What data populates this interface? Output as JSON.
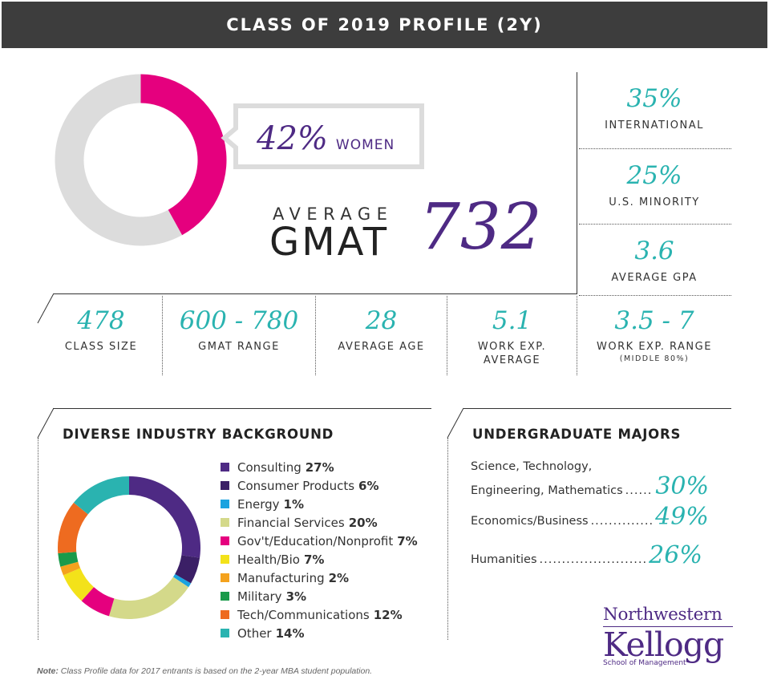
{
  "header": {
    "title": "CLASS OF 2019 PROFILE (2Y)"
  },
  "women": {
    "value": "42%",
    "label": "WOMEN",
    "fraction": 0.42,
    "colors": {
      "main": "#e5007e",
      "rest": "#dcdcdc"
    }
  },
  "gmat": {
    "prefix": "AVERAGE",
    "label": "GMAT",
    "value": "732"
  },
  "side_stats": [
    {
      "value": "35%",
      "label": "INTERNATIONAL"
    },
    {
      "value": "25%",
      "label": "U.S. MINORITY"
    },
    {
      "value": "3.6",
      "label": "AVERAGE GPA"
    }
  ],
  "row_stats": [
    {
      "value": "478",
      "label": "CLASS SIZE",
      "sub": ""
    },
    {
      "value": "600 - 780",
      "label": "GMAT RANGE",
      "sub": ""
    },
    {
      "value": "28",
      "label": "AVERAGE AGE",
      "sub": ""
    },
    {
      "value": "5.1",
      "label": "WORK EXP.",
      "label2": "AVERAGE",
      "sub": ""
    },
    {
      "value": "3.5 - 7",
      "label": "WORK EXP. RANGE",
      "sub": "(MIDDLE 80%)"
    }
  ],
  "industry": {
    "title": "DIVERSE INDUSTRY BACKGROUND"
  },
  "majors": {
    "title": "UNDERGRADUATE MAJORS",
    "items": [
      {
        "line1": "Science, Technology,",
        "line2": "Engineering, Mathematics",
        "dots": "......",
        "value": "30%"
      },
      {
        "line1": "",
        "line2": "Economics/Business",
        "dots": "..............",
        "value": "49%"
      },
      {
        "line1": "",
        "line2": "Humanities",
        "dots": "........................",
        "value": "26%"
      }
    ]
  },
  "footer": {
    "note_label": "Note:",
    "note_text": " Class Profile data for 2017 entrants is based on the 2-year MBA student population.",
    "logo_top": "Northwestern",
    "logo_main": "Kellogg",
    "logo_sub": "School of Management"
  },
  "chart_data": [
    {
      "type": "pie",
      "title": "",
      "categories": [
        "Women",
        "Other"
      ],
      "values": [
        42,
        58
      ],
      "colors": [
        "#e5007e",
        "#dcdcdc"
      ]
    },
    {
      "type": "pie",
      "title": "DIVERSE INDUSTRY BACKGROUND",
      "categories": [
        "Consulting",
        "Consumer Products",
        "Energy",
        "Financial Services",
        "Gov't/Education/Nonprofit",
        "Health/Bio",
        "Manufacturing",
        "Military",
        "Tech/Communications",
        "Other"
      ],
      "values": [
        27,
        6,
        1,
        20,
        7,
        7,
        2,
        3,
        12,
        14
      ],
      "labels": [
        "27%",
        "6%",
        "1%",
        "20%",
        "7%",
        "7%",
        "2%",
        "3%",
        "12%",
        "14%"
      ],
      "colors": [
        "#4e2a84",
        "#3b1f66",
        "#1aa3e0",
        "#d4d98a",
        "#e5007e",
        "#f3e21a",
        "#f4a21d",
        "#1a9a4a",
        "#ee6b20",
        "#2ab3b0"
      ],
      "legend": "right"
    }
  ]
}
